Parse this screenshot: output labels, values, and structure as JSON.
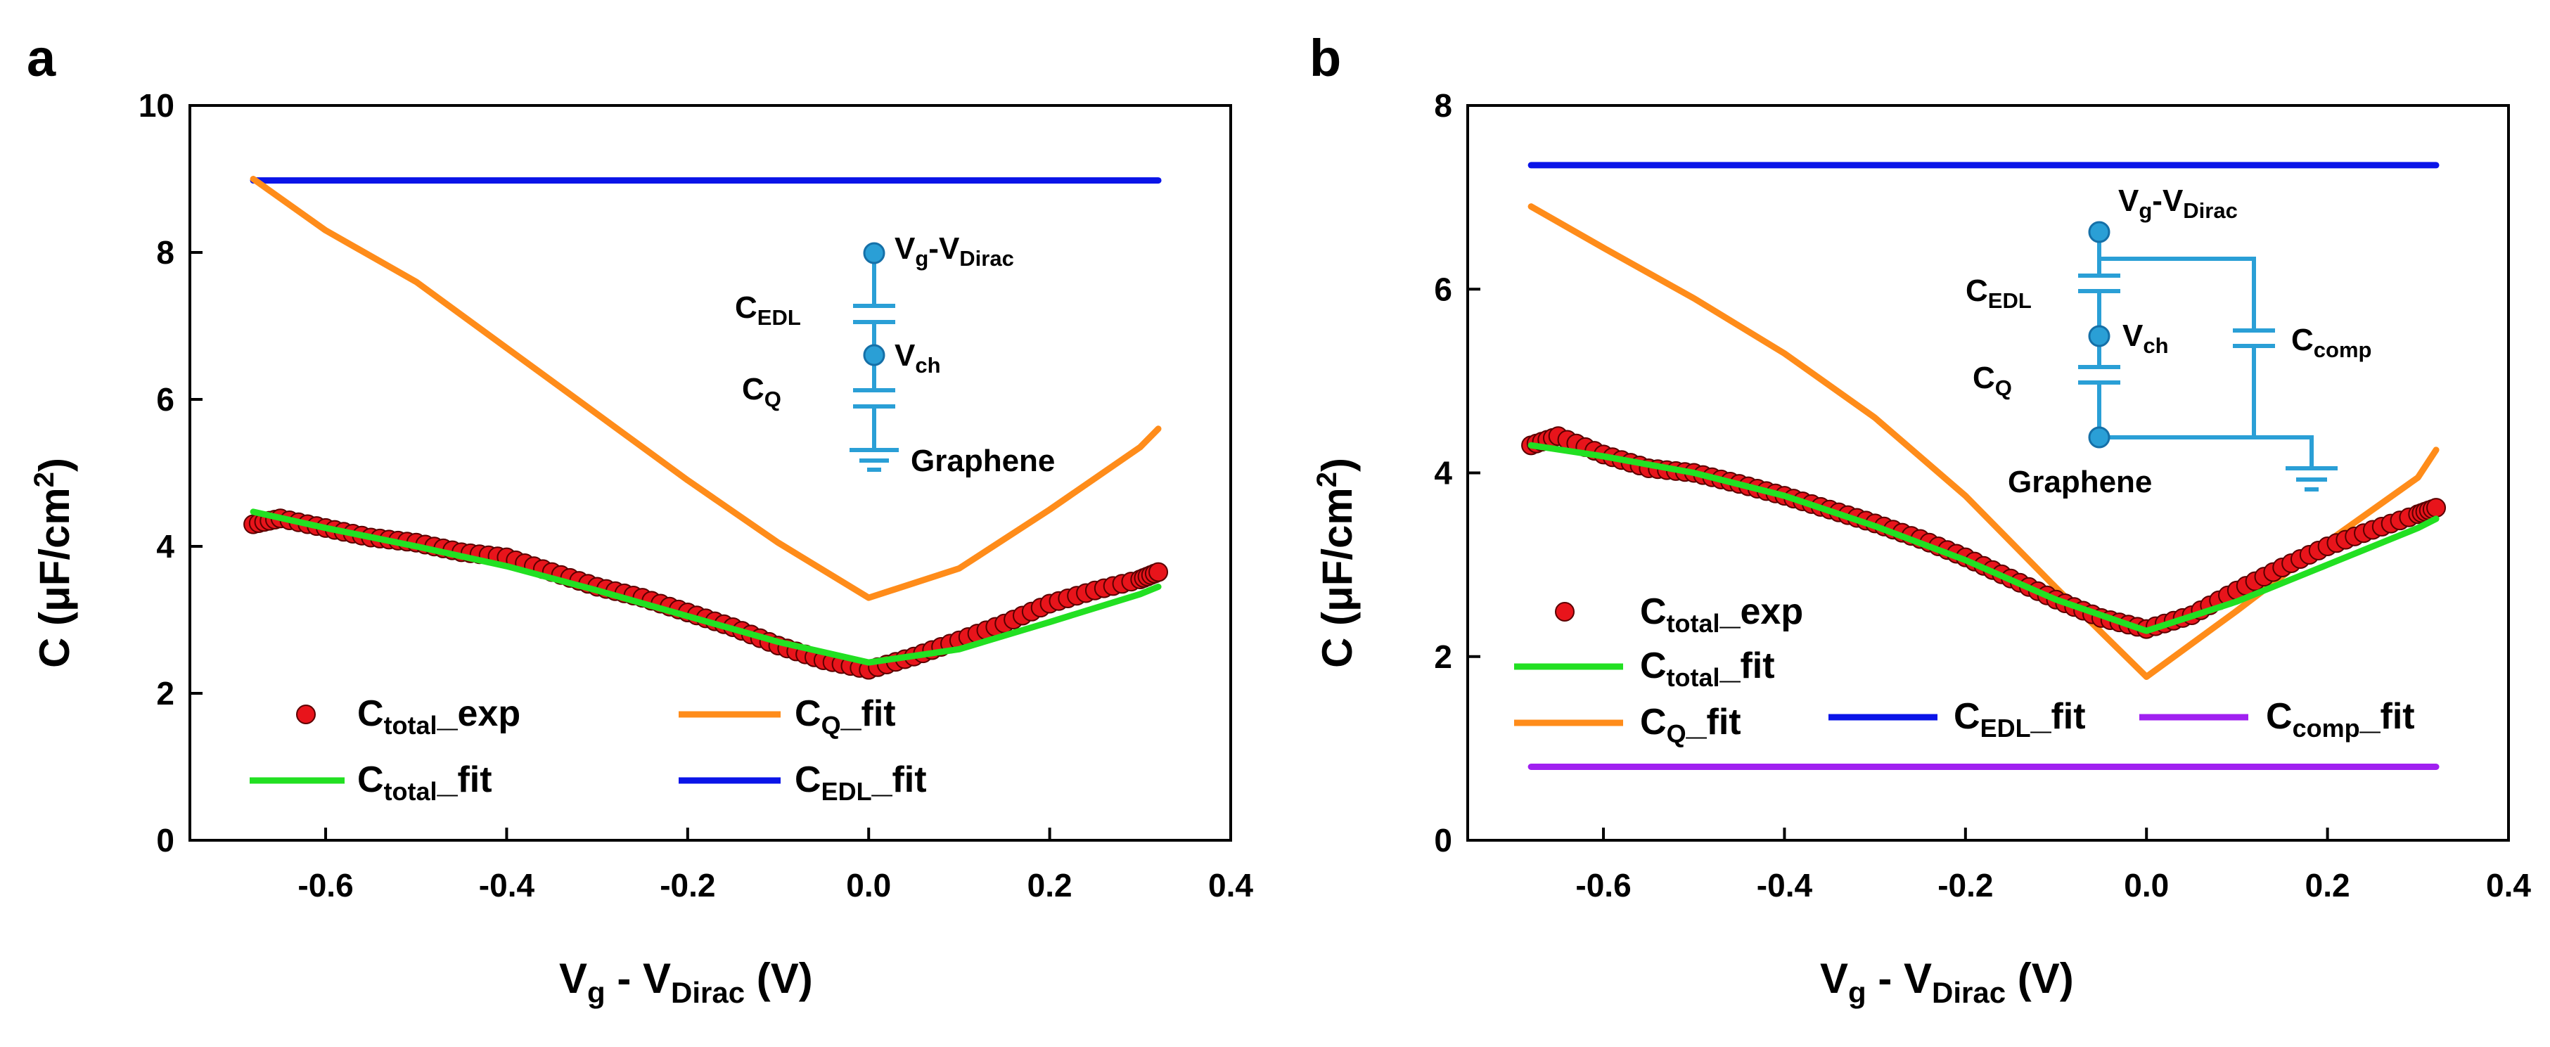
{
  "chart_data": [
    {
      "type": "line",
      "panel_label": "a",
      "xlabel": {
        "main": "V",
        "sub1": "g",
        "mid": " - V",
        "sub2": "Dirac",
        "tail": " (V)"
      },
      "ylabel": {
        "main": "C (μF/cm",
        "sup": "2",
        "tail": ")"
      },
      "xlim": [
        -0.75,
        0.4
      ],
      "ylim": [
        0,
        10
      ],
      "xticks": [
        "-0.6",
        "-0.4",
        "-0.2",
        "0.0",
        "0.2",
        "0.4"
      ],
      "xtick_values": [
        -0.6,
        -0.4,
        -0.2,
        0.0,
        0.2,
        0.4
      ],
      "yticks": [
        "0",
        "2",
        "4",
        "6",
        "8",
        "10"
      ],
      "ytick_values": [
        0,
        2,
        4,
        6,
        8,
        10
      ],
      "legend": [
        {
          "key": "exp",
          "marker": "circle",
          "color": "#e8141b",
          "base": "C",
          "sub": "total",
          "tail": "_exp"
        },
        {
          "key": "total_fit",
          "marker": "line",
          "color": "#22e022",
          "base": "C",
          "sub": "total",
          "tail": "_fit"
        },
        {
          "key": "q_fit",
          "marker": "line",
          "color": "#ff8c1a",
          "base": "C",
          "sub": "Q",
          "tail": "_fit"
        },
        {
          "key": "edl_fit",
          "marker": "line",
          "color": "#0a14e8",
          "base": "C",
          "sub": "EDL",
          "tail": "_fit"
        }
      ],
      "series": [
        {
          "name": "C_EDL_fit",
          "color": "#0a14e8",
          "x": [
            -0.68,
            0.32
          ],
          "y": [
            8.98,
            8.98
          ]
        },
        {
          "name": "C_Q_fit",
          "color": "#ff8c1a",
          "x": [
            -0.68,
            -0.6,
            -0.5,
            -0.4,
            -0.3,
            -0.2,
            -0.1,
            0.0,
            0.1,
            0.2,
            0.3,
            0.32
          ],
          "y": [
            9.0,
            8.3,
            7.6,
            6.7,
            5.8,
            4.9,
            4.05,
            3.3,
            3.7,
            4.5,
            5.35,
            5.6
          ]
        },
        {
          "name": "C_total_fit",
          "color": "#22e022",
          "x": [
            -0.68,
            -0.6,
            -0.5,
            -0.4,
            -0.3,
            -0.2,
            -0.1,
            0.0,
            0.1,
            0.2,
            0.3,
            0.32
          ],
          "y": [
            4.47,
            4.25,
            4.0,
            3.73,
            3.4,
            3.05,
            2.7,
            2.42,
            2.6,
            2.97,
            3.35,
            3.45
          ]
        },
        {
          "name": "C_total_exp",
          "color": "#e8141b",
          "x": [
            -0.68,
            -0.65,
            -0.6,
            -0.55,
            -0.5,
            -0.45,
            -0.4,
            -0.35,
            -0.3,
            -0.25,
            -0.2,
            -0.15,
            -0.1,
            -0.05,
            0.0,
            0.05,
            0.1,
            0.15,
            0.2,
            0.25,
            0.3,
            0.32
          ],
          "y": [
            4.3,
            4.38,
            4.25,
            4.12,
            4.05,
            3.92,
            3.85,
            3.65,
            3.45,
            3.3,
            3.1,
            2.9,
            2.65,
            2.45,
            2.32,
            2.5,
            2.72,
            2.95,
            3.22,
            3.4,
            3.55,
            3.65
          ]
        }
      ],
      "circuit": {
        "node_top": {
          "main": "V",
          "sub1": "g",
          "mid": "-V",
          "sub2": "Dirac"
        },
        "cap_top": {
          "main": "C",
          "sub": "EDL"
        },
        "node_mid": {
          "main": "V",
          "sub": "ch"
        },
        "cap_bot": {
          "main": "C",
          "sub": "Q"
        },
        "ground": "Graphene"
      }
    },
    {
      "type": "line",
      "panel_label": "b",
      "xlabel": {
        "main": "V",
        "sub1": "g",
        "mid": " - V",
        "sub2": "Dirac",
        "tail": " (V)"
      },
      "ylabel": {
        "main": "C (μF/cm",
        "sup": "2",
        "tail": ")"
      },
      "xlim": [
        -0.75,
        0.4
      ],
      "ylim": [
        0,
        8
      ],
      "xticks": [
        "-0.6",
        "-0.4",
        "-0.2",
        "0.0",
        "0.2",
        "0.4"
      ],
      "xtick_values": [
        -0.6,
        -0.4,
        -0.2,
        0.0,
        0.2,
        0.4
      ],
      "yticks": [
        "0",
        "2",
        "4",
        "6",
        "8"
      ],
      "ytick_values": [
        0,
        2,
        4,
        6,
        8
      ],
      "legend": [
        {
          "key": "exp",
          "marker": "circle",
          "color": "#e8141b",
          "base": "C",
          "sub": "total",
          "tail": "_exp"
        },
        {
          "key": "total_fit",
          "marker": "line",
          "color": "#22e022",
          "base": "C",
          "sub": "total",
          "tail": "_fit"
        },
        {
          "key": "q_fit",
          "marker": "line",
          "color": "#ff8c1a",
          "base": "C",
          "sub": "Q",
          "tail": "_fit"
        },
        {
          "key": "edl_fit",
          "marker": "line",
          "color": "#0a14e8",
          "base": "C",
          "sub": "EDL",
          "tail": "_fit"
        },
        {
          "key": "comp_fit",
          "marker": "line",
          "color": "#a020f0",
          "base": "C",
          "sub": "comp",
          "tail": "_fit"
        }
      ],
      "series": [
        {
          "name": "C_EDL_fit",
          "color": "#0a14e8",
          "x": [
            -0.68,
            0.32
          ],
          "y": [
            7.35,
            7.35
          ]
        },
        {
          "name": "C_comp_fit",
          "color": "#a020f0",
          "x": [
            -0.68,
            0.32
          ],
          "y": [
            0.8,
            0.8
          ]
        },
        {
          "name": "C_Q_fit",
          "color": "#ff8c1a",
          "x": [
            -0.68,
            -0.6,
            -0.5,
            -0.4,
            -0.3,
            -0.2,
            -0.1,
            0.0,
            0.1,
            0.2,
            0.3,
            0.32
          ],
          "y": [
            6.9,
            6.45,
            5.9,
            5.3,
            4.6,
            3.75,
            2.75,
            1.78,
            2.5,
            3.25,
            3.95,
            4.25
          ]
        },
        {
          "name": "C_total_fit",
          "color": "#22e022",
          "x": [
            -0.68,
            -0.6,
            -0.5,
            -0.4,
            -0.3,
            -0.2,
            -0.1,
            0.0,
            0.1,
            0.2,
            0.3,
            0.32
          ],
          "y": [
            4.3,
            4.18,
            4.0,
            3.75,
            3.42,
            3.05,
            2.62,
            2.28,
            2.6,
            3.0,
            3.4,
            3.5
          ]
        },
        {
          "name": "C_total_exp",
          "color": "#e8141b",
          "x": [
            -0.68,
            -0.65,
            -0.6,
            -0.55,
            -0.5,
            -0.45,
            -0.4,
            -0.35,
            -0.3,
            -0.25,
            -0.2,
            -0.15,
            -0.1,
            -0.05,
            0.0,
            0.05,
            0.1,
            0.15,
            0.2,
            0.25,
            0.3,
            0.32
          ],
          "y": [
            4.3,
            4.4,
            4.2,
            4.05,
            4.0,
            3.88,
            3.75,
            3.6,
            3.45,
            3.28,
            3.08,
            2.85,
            2.62,
            2.42,
            2.3,
            2.45,
            2.72,
            2.97,
            3.2,
            3.38,
            3.55,
            3.62
          ]
        }
      ],
      "circuit": {
        "node_top": {
          "main": "V",
          "sub1": "g",
          "mid": "-V",
          "sub2": "Dirac"
        },
        "cap_top": {
          "main": "C",
          "sub": "EDL"
        },
        "node_mid": {
          "main": "V",
          "sub": "ch"
        },
        "cap_bot": {
          "main": "C",
          "sub": "Q"
        },
        "cap_side": {
          "main": "C",
          "sub": "comp"
        },
        "ground": "Graphene"
      }
    }
  ]
}
